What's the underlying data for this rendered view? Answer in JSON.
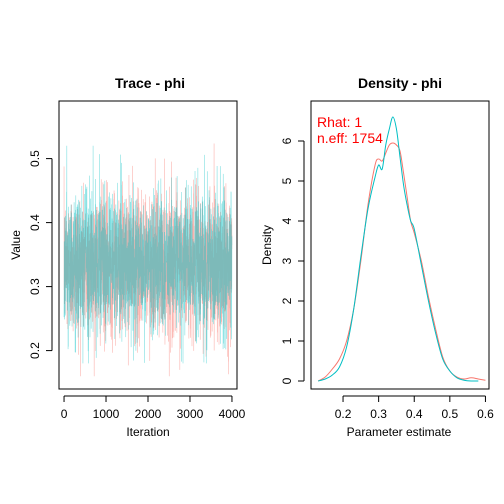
{
  "chart_data": [
    {
      "type": "line",
      "title": "Trace - phi",
      "xlabel": "Iteration",
      "ylabel": "Value",
      "xlim": [
        -120,
        4120
      ],
      "ylim": [
        0.14,
        0.59
      ],
      "x_ticks": [
        0,
        1000,
        2000,
        3000,
        4000
      ],
      "y_ticks": [
        0.2,
        0.3,
        0.4,
        0.5
      ],
      "y_tick_labels": [
        "0.2",
        "0.3",
        "0.4",
        "0.5"
      ],
      "n_iterations": 4000,
      "series": [
        {
          "color": "#f8766d",
          "center": 0.335,
          "spread": 0.055,
          "min": 0.16,
          "max": 0.56
        },
        {
          "color": "#00bfc4",
          "center": 0.335,
          "spread": 0.055,
          "min": 0.18,
          "max": 0.52
        }
      ]
    },
    {
      "type": "line",
      "title": "Density - phi",
      "xlabel": "Parameter estimate",
      "ylabel": "Density",
      "xlim": [
        0.11,
        0.61
      ],
      "ylim": [
        -0.2,
        7.0
      ],
      "x_ticks": [
        0.2,
        0.3,
        0.4,
        0.5,
        0.6
      ],
      "y_ticks": [
        0,
        1,
        2,
        3,
        4,
        5,
        6
      ],
      "annotations": [
        "Rhat: 1",
        "n.eff: 1754"
      ],
      "series": [
        {
          "color": "#f8766d",
          "x": [
            0.13,
            0.15,
            0.17,
            0.19,
            0.21,
            0.23,
            0.25,
            0.27,
            0.29,
            0.3,
            0.31,
            0.32,
            0.33,
            0.34,
            0.35,
            0.36,
            0.37,
            0.38,
            0.39,
            0.4,
            0.42,
            0.44,
            0.46,
            0.48,
            0.5,
            0.52,
            0.54,
            0.56,
            0.58,
            0.6
          ],
          "y": [
            0.0,
            0.1,
            0.3,
            0.55,
            1.0,
            1.8,
            3.0,
            4.4,
            5.4,
            5.55,
            5.5,
            5.7,
            5.9,
            5.95,
            5.9,
            5.75,
            5.2,
            4.6,
            4.0,
            3.7,
            3.0,
            2.1,
            1.3,
            0.6,
            0.25,
            0.1,
            0.05,
            0.08,
            0.05,
            0.02
          ]
        },
        {
          "color": "#00bfc4",
          "x": [
            0.13,
            0.15,
            0.17,
            0.19,
            0.21,
            0.23,
            0.25,
            0.27,
            0.29,
            0.3,
            0.31,
            0.32,
            0.33,
            0.34,
            0.35,
            0.36,
            0.37,
            0.38,
            0.39,
            0.4,
            0.42,
            0.44,
            0.46,
            0.48,
            0.5,
            0.52,
            0.54,
            0.56,
            0.58
          ],
          "y": [
            0.0,
            0.05,
            0.15,
            0.35,
            0.85,
            1.8,
            3.1,
            4.3,
            5.1,
            5.4,
            5.3,
            5.9,
            6.3,
            6.6,
            6.3,
            5.6,
            4.9,
            4.4,
            4.0,
            3.8,
            2.9,
            2.0,
            1.2,
            0.55,
            0.25,
            0.08,
            0.02,
            0.0,
            0.0
          ]
        }
      ]
    }
  ]
}
